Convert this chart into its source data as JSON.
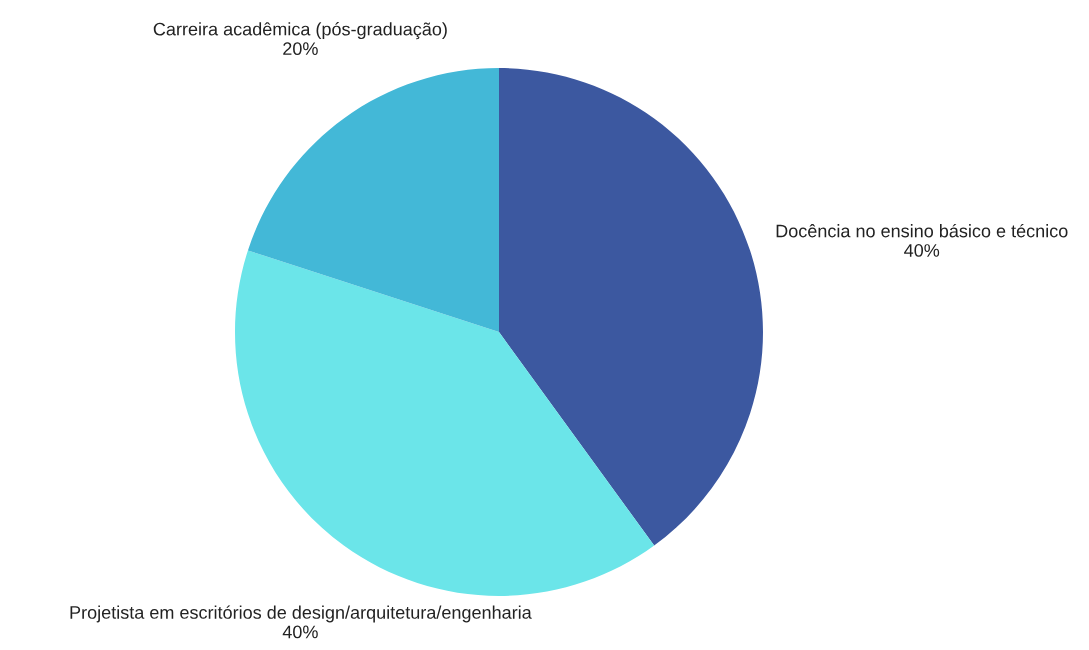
{
  "chart_data": {
    "type": "pie",
    "categories": [
      "Docência no ensino básico e técnico",
      "Projetista em escritórios de design/arquitetura/engenharia",
      "Carreira acadêmica (pós-graduação)"
    ],
    "values": [
      40,
      40,
      20
    ],
    "value_labels": [
      "40%",
      "40%",
      "20%"
    ],
    "colors": [
      "#3c58a0",
      "#6be5e9",
      "#43b8d7"
    ],
    "legend": false
  }
}
